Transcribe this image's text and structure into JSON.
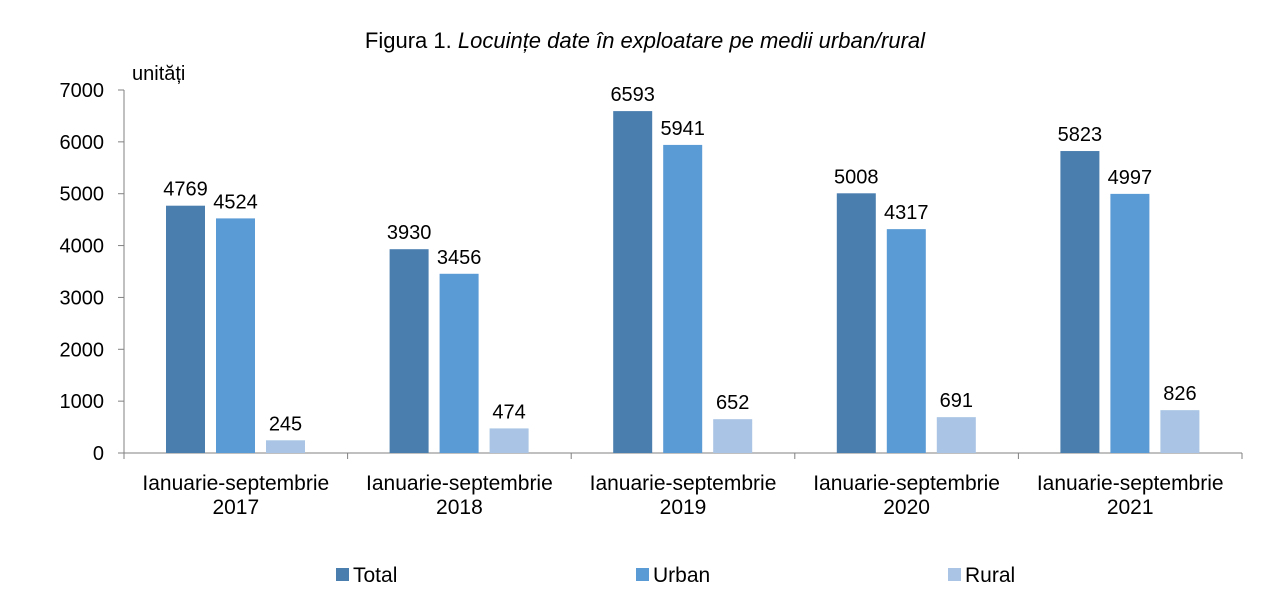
{
  "chart_data": {
    "type": "bar",
    "title_prefix": "Figura 1. ",
    "title_main": "Locuințe date în exploatare pe medii urban/rural",
    "ylabel": "unități",
    "ylim": [
      0,
      7000
    ],
    "yticks": [
      0,
      1000,
      2000,
      3000,
      4000,
      5000,
      6000,
      7000
    ],
    "categories": [
      [
        "Ianuarie-septembrie",
        "2017"
      ],
      [
        "Ianuarie-septembrie",
        "2018"
      ],
      [
        "Ianuarie-septembrie",
        "2019"
      ],
      [
        "Ianuarie-septembrie",
        "2020"
      ],
      [
        "Ianuarie-septembrie",
        "2021"
      ]
    ],
    "series": [
      {
        "name": "Total",
        "color": "#4A7EAF",
        "values": [
          4769,
          3930,
          6593,
          5008,
          5823
        ]
      },
      {
        "name": "Urban",
        "color": "#5B9BD5",
        "values": [
          4524,
          3456,
          5941,
          4317,
          4997
        ]
      },
      {
        "name": "Rural",
        "color": "#A9C4E4",
        "values": [
          245,
          474,
          652,
          691,
          826
        ]
      }
    ],
    "legend_position": "bottom",
    "grid": false
  }
}
